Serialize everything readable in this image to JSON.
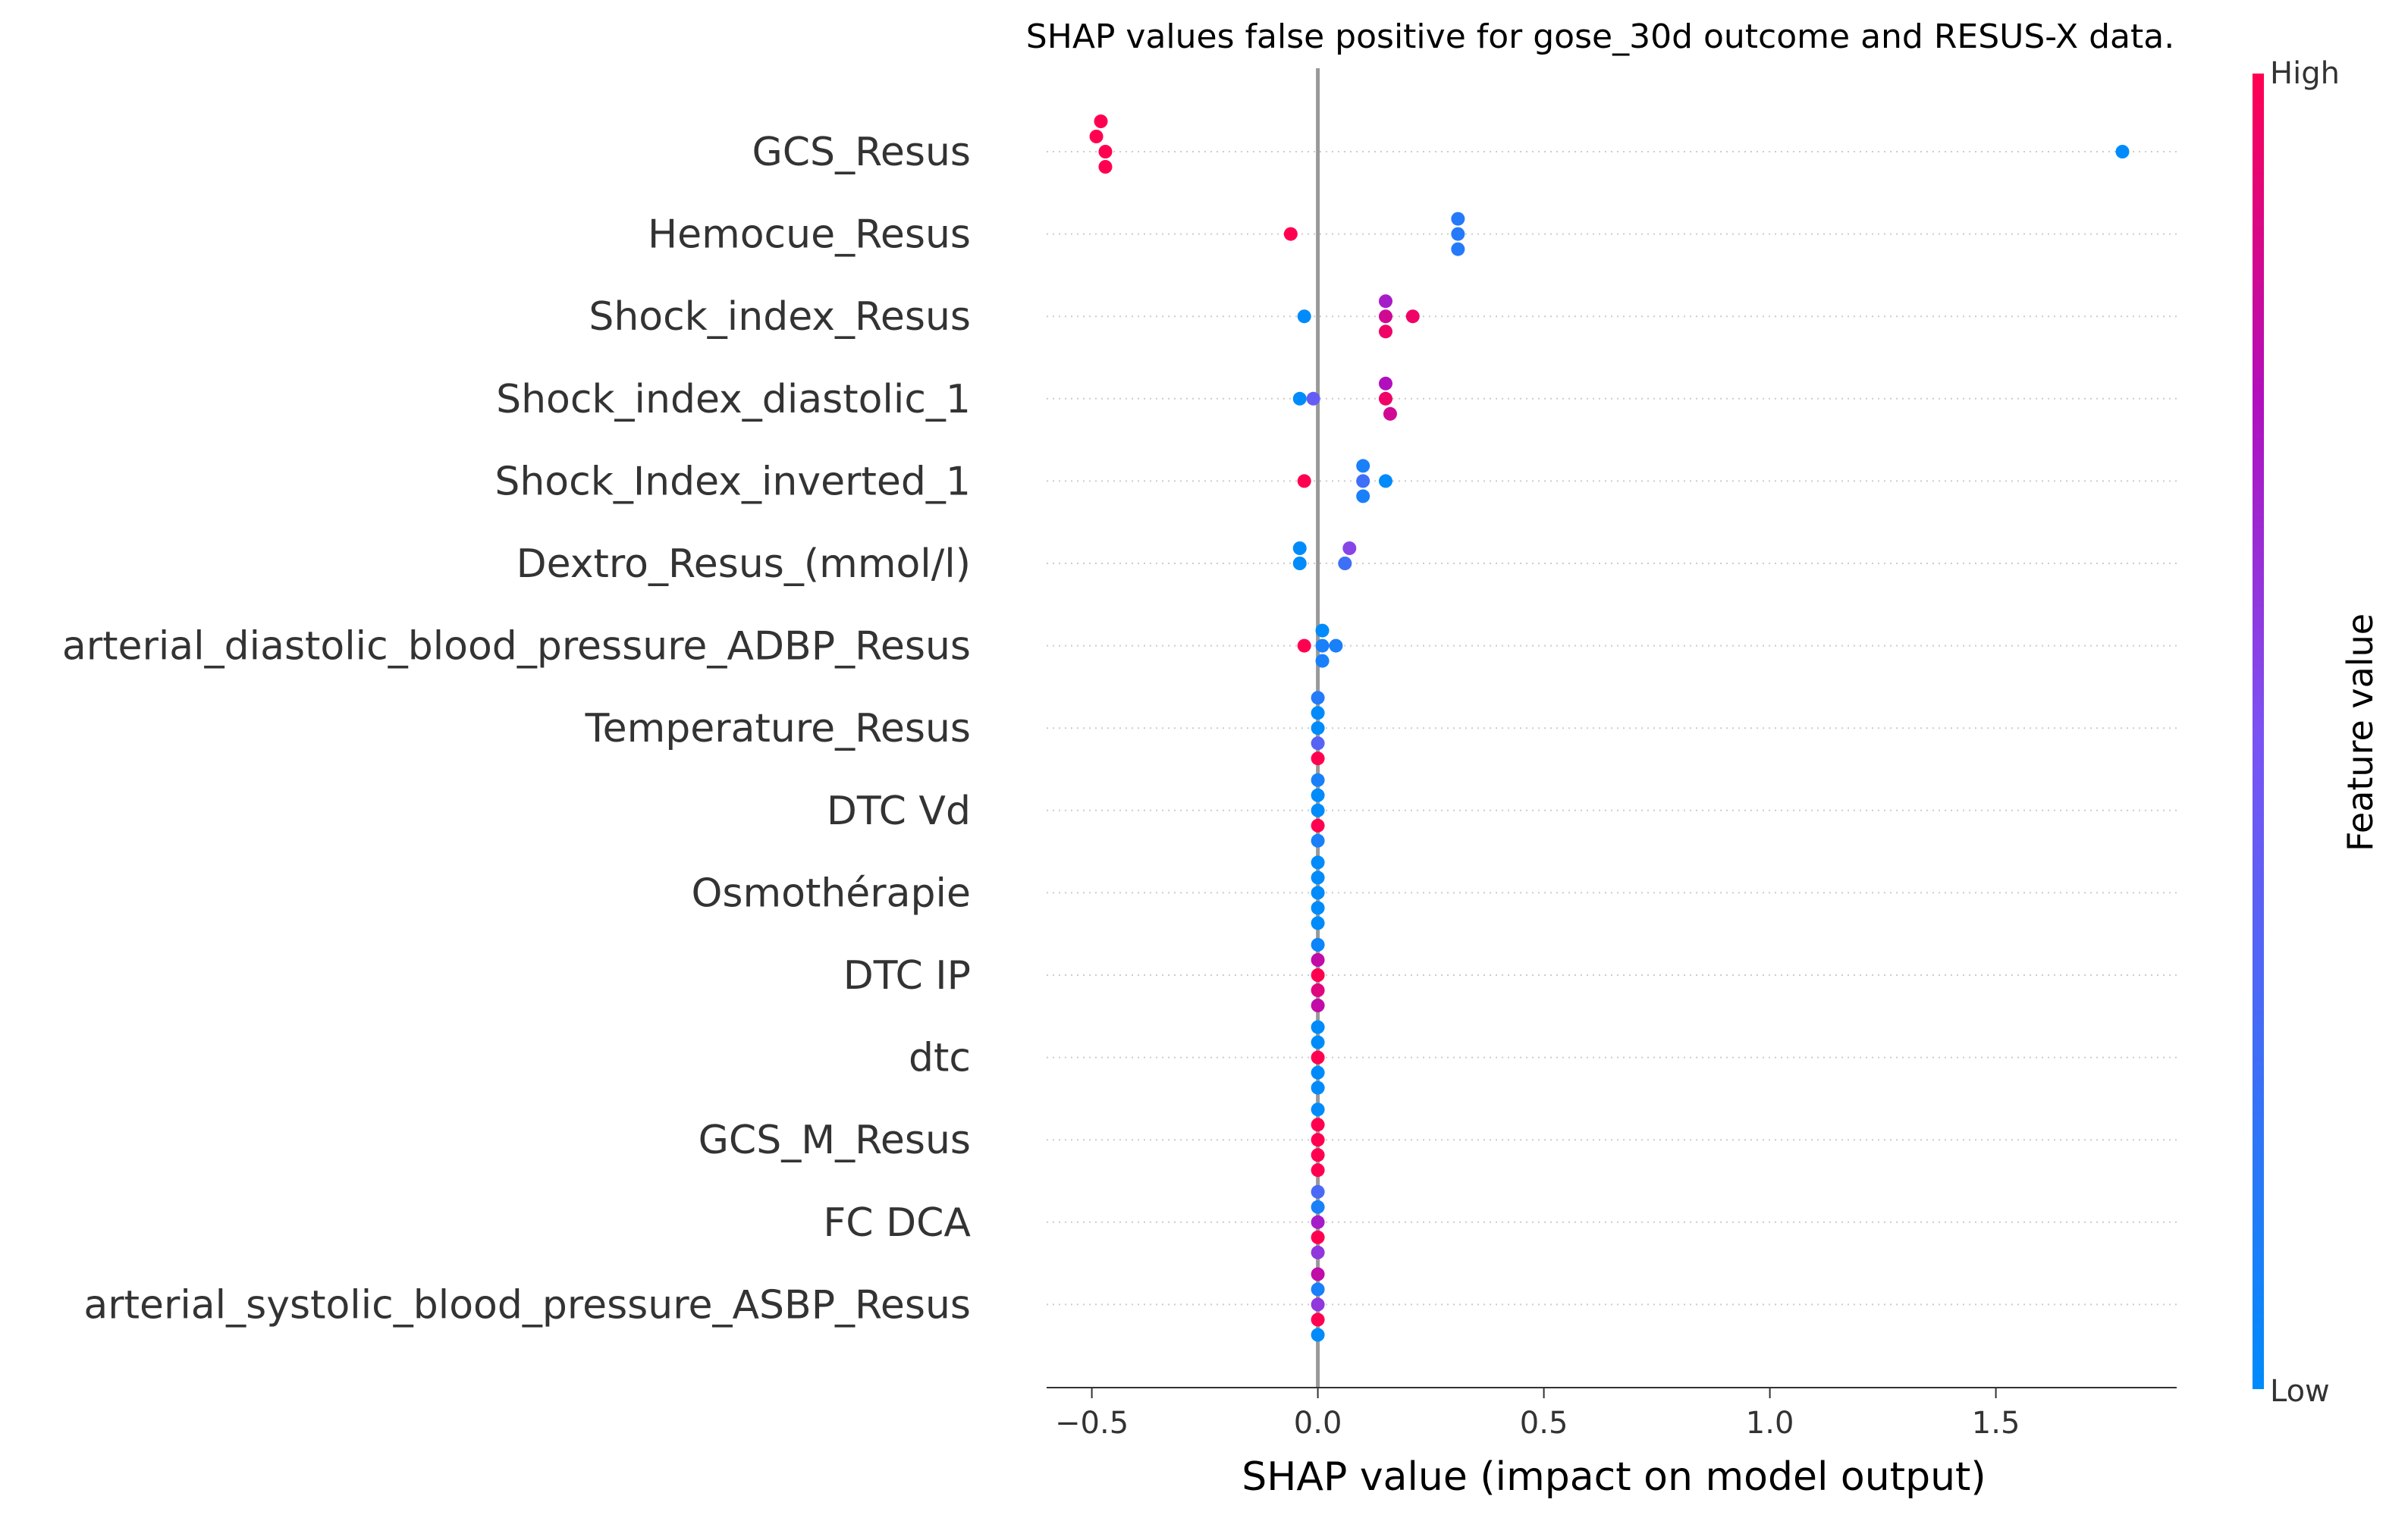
{
  "chart_data": {
    "type": "scatter",
    "subtype": "shap-beeswarm",
    "title": "SHAP values false positive for gose_30d outcome and RESUS-X data.",
    "xlabel": "SHAP value (impact on model output)",
    "ylabel": "",
    "xlim": [
      -0.6,
      1.9
    ],
    "xticks": [
      -0.5,
      0.0,
      0.5,
      1.0,
      1.5
    ],
    "xtick_labels": [
      "−0.5",
      "0.0",
      "0.5",
      "1.0",
      "1.5"
    ],
    "zero_line": 0.0,
    "grid": "horizontal dotted per feature",
    "colorbar": {
      "title": "Feature value",
      "high_label": "High",
      "low_label": "Low",
      "high_color": "#ff0051",
      "mid_color": "#b10fbe",
      "low_color": "#008bfb",
      "placement": "right"
    },
    "features": [
      {
        "name": "GCS_Resus",
        "points": [
          {
            "x": -0.47,
            "f": 1.0
          },
          {
            "x": -0.49,
            "f": 1.0
          },
          {
            "x": -0.47,
            "f": 1.0
          },
          {
            "x": -0.48,
            "f": 1.0
          },
          {
            "x": 1.78,
            "f": 0.0
          }
        ]
      },
      {
        "name": "Hemocue_Resus",
        "points": [
          {
            "x": -0.06,
            "f": 1.0
          },
          {
            "x": 0.31,
            "f": 0.15
          },
          {
            "x": 0.31,
            "f": 0.15
          },
          {
            "x": 0.31,
            "f": 0.15
          }
        ]
      },
      {
        "name": "Shock_index_Resus",
        "points": [
          {
            "x": -0.03,
            "f": 0.0
          },
          {
            "x": 0.15,
            "f": 0.85
          },
          {
            "x": 0.15,
            "f": 0.7
          },
          {
            "x": 0.15,
            "f": 0.95
          },
          {
            "x": 0.21,
            "f": 0.95
          }
        ]
      },
      {
        "name": "Shock_index_diastolic_1",
        "points": [
          {
            "x": -0.04,
            "f": 0.0
          },
          {
            "x": -0.01,
            "f": 0.4
          },
          {
            "x": 0.15,
            "f": 0.95
          },
          {
            "x": 0.15,
            "f": 0.75
          },
          {
            "x": 0.16,
            "f": 0.85
          }
        ]
      },
      {
        "name": "Shock_Index_inverted_1",
        "points": [
          {
            "x": -0.03,
            "f": 1.0
          },
          {
            "x": 0.1,
            "f": 0.25
          },
          {
            "x": 0.1,
            "f": 0.1
          },
          {
            "x": 0.1,
            "f": 0.1
          },
          {
            "x": 0.15,
            "f": 0.0
          }
        ]
      },
      {
        "name": "Dextro_Resus_(mmol/l)",
        "points": [
          {
            "x": -0.04,
            "f": 0.0
          },
          {
            "x": -0.04,
            "f": 0.0
          },
          {
            "x": 0.06,
            "f": 0.25
          },
          {
            "x": 0.07,
            "f": 0.55
          }
        ]
      },
      {
        "name": "arterial_diastolic_blood_pressure_ADBP_Resus",
        "points": [
          {
            "x": -0.03,
            "f": 1.0
          },
          {
            "x": 0.01,
            "f": 0.1
          },
          {
            "x": 0.01,
            "f": 0.0
          },
          {
            "x": 0.01,
            "f": 0.1
          },
          {
            "x": 0.04,
            "f": 0.1
          }
        ]
      },
      {
        "name": "Temperature_Resus",
        "points": [
          {
            "x": 0.0,
            "f": 0.0
          },
          {
            "x": 0.0,
            "f": 0.0
          },
          {
            "x": 0.0,
            "f": 0.35
          },
          {
            "x": 0.0,
            "f": 0.15
          },
          {
            "x": 0.0,
            "f": 1.0
          }
        ]
      },
      {
        "name": "DTC Vd",
        "points": [
          {
            "x": 0.0,
            "f": 0.0
          },
          {
            "x": 0.0,
            "f": 0.0
          },
          {
            "x": 0.0,
            "f": 1.0
          },
          {
            "x": 0.0,
            "f": 0.1
          },
          {
            "x": 0.0,
            "f": 0.1
          }
        ]
      },
      {
        "name": "Osmothérapie",
        "points": [
          {
            "x": 0.0,
            "f": 0.0
          },
          {
            "x": 0.0,
            "f": 0.0
          },
          {
            "x": 0.0,
            "f": 0.0
          },
          {
            "x": 0.0,
            "f": 0.0
          },
          {
            "x": 0.0,
            "f": 0.0
          }
        ]
      },
      {
        "name": "DTC IP",
        "points": [
          {
            "x": 0.0,
            "f": 1.0
          },
          {
            "x": 0.0,
            "f": 0.8
          },
          {
            "x": 0.0,
            "f": 0.9
          },
          {
            "x": 0.0,
            "f": 0.05
          },
          {
            "x": 0.0,
            "f": 0.8
          }
        ]
      },
      {
        "name": "dtc",
        "points": [
          {
            "x": 0.0,
            "f": 1.0
          },
          {
            "x": 0.0,
            "f": 0.0
          },
          {
            "x": 0.0,
            "f": 0.0
          },
          {
            "x": 0.0,
            "f": 0.0
          },
          {
            "x": 0.0,
            "f": 0.0
          }
        ]
      },
      {
        "name": "GCS_M_Resus",
        "points": [
          {
            "x": 0.0,
            "f": 1.0
          },
          {
            "x": 0.0,
            "f": 1.0
          },
          {
            "x": 0.0,
            "f": 1.0
          },
          {
            "x": 0.0,
            "f": 0.0
          },
          {
            "x": 0.0,
            "f": 1.0
          }
        ]
      },
      {
        "name": "FC  DCA",
        "points": [
          {
            "x": 0.0,
            "f": 0.7
          },
          {
            "x": 0.0,
            "f": 0.1
          },
          {
            "x": 0.0,
            "f": 1.0
          },
          {
            "x": 0.0,
            "f": 0.3
          },
          {
            "x": 0.0,
            "f": 0.6
          }
        ]
      },
      {
        "name": "arterial_systolic_blood_pressure_ASBP_Resus",
        "points": [
          {
            "x": 0.0,
            "f": 0.6
          },
          {
            "x": 0.0,
            "f": 0.1
          },
          {
            "x": 0.0,
            "f": 1.0
          },
          {
            "x": 0.0,
            "f": 0.8
          },
          {
            "x": 0.0,
            "f": 0.0
          }
        ]
      }
    ]
  }
}
